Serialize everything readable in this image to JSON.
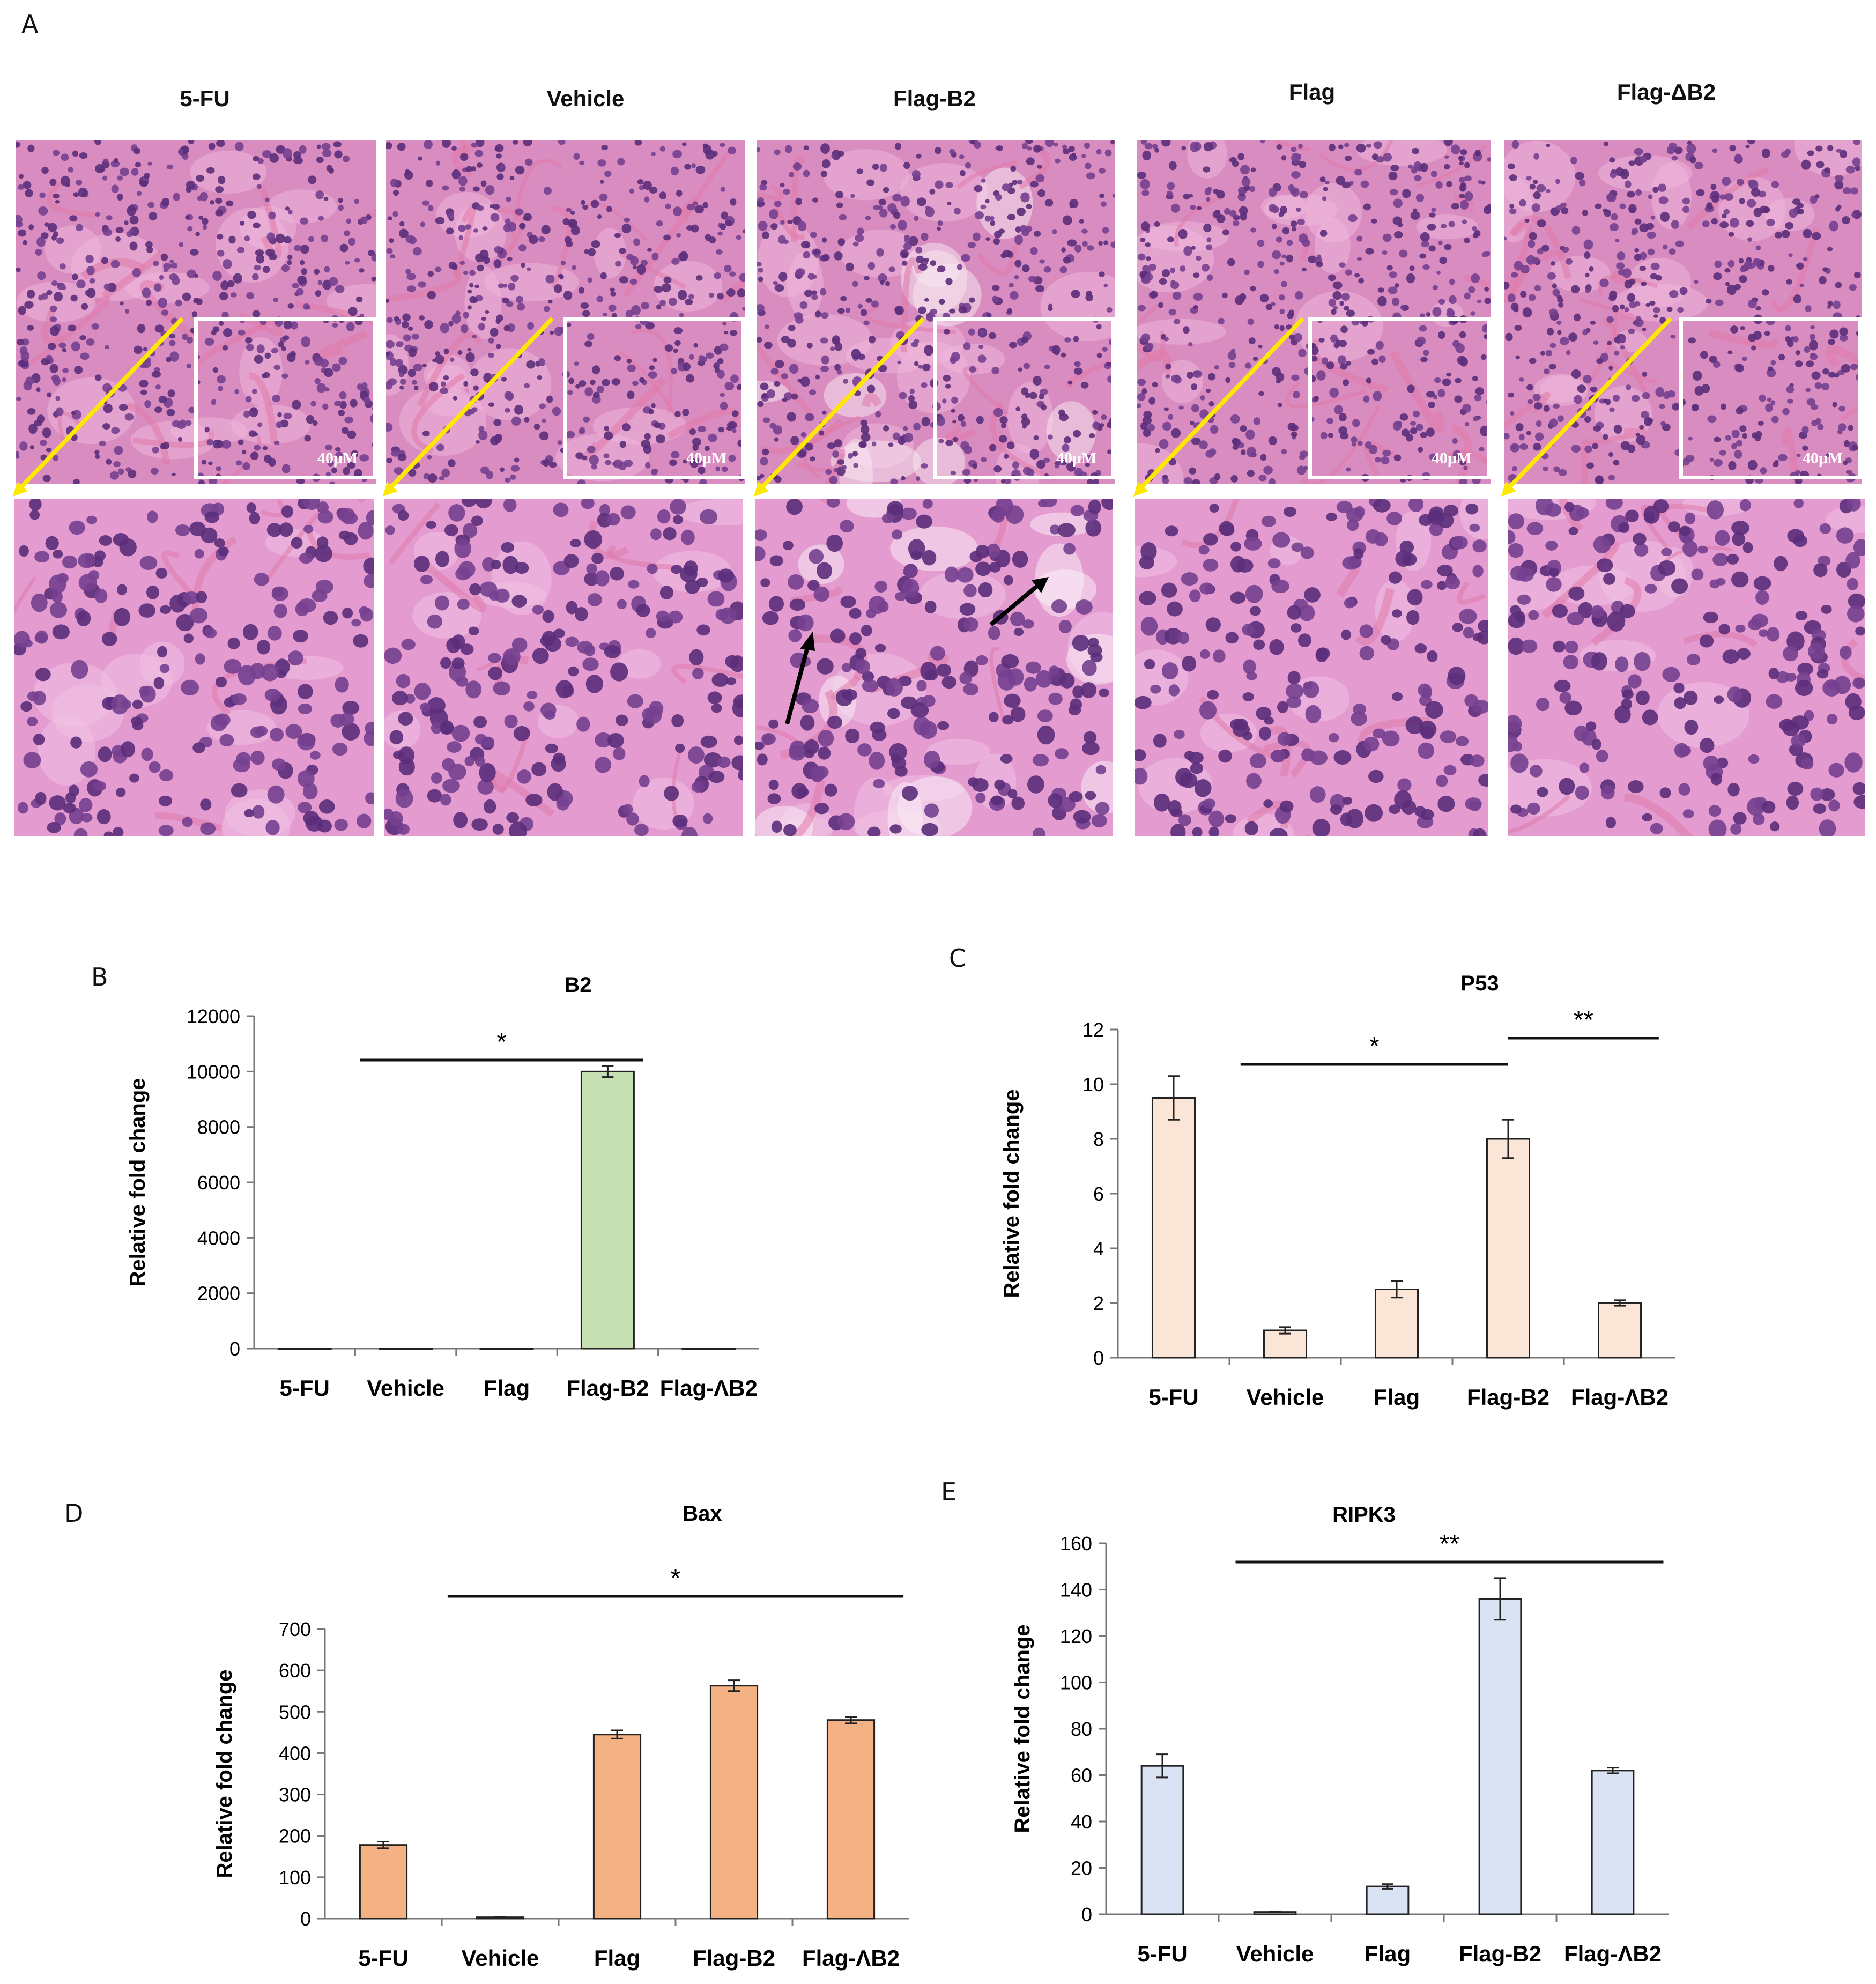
{
  "figure": {
    "panel_letters": {
      "a": "A",
      "b": "B",
      "c": "C",
      "d": "D",
      "e": "E"
    },
    "histology": {
      "columns": [
        {
          "label": "5-FU",
          "scale": "40μM"
        },
        {
          "label": "Vehicle",
          "scale": "40μM"
        },
        {
          "label": "Flag-B2",
          "scale": "40μM"
        },
        {
          "label": "Flag",
          "scale": "40μM"
        },
        {
          "label": "Flag-ΔB2",
          "scale": "40μM"
        }
      ]
    }
  },
  "chart_data": [
    {
      "id": "B",
      "type": "bar",
      "title": "B2",
      "ylabel": "Relative fold change",
      "categories": [
        "5-FU",
        "Vehicle",
        "Flag",
        "Flag-B2",
        "Flag-ΛB2"
      ],
      "values": [
        10,
        10,
        10,
        10000,
        10
      ],
      "errors": [
        0,
        0,
        0,
        200,
        0
      ],
      "ylim": [
        0,
        12000
      ],
      "ytick_step": 2000,
      "color": "#c6e0b4",
      "significance": [
        {
          "label": "*",
          "from": 1,
          "to": 4
        }
      ]
    },
    {
      "id": "C",
      "type": "bar",
      "title": "P53",
      "ylabel": "Relative fold change",
      "categories": [
        "5-FU",
        "Vehicle",
        "Flag",
        "Flag-B2",
        "Flag-ΛB2"
      ],
      "values": [
        9.5,
        1.0,
        2.5,
        8.0,
        2.0
      ],
      "errors": [
        0.8,
        0.12,
        0.3,
        0.7,
        0.1
      ],
      "ylim": [
        0,
        12
      ],
      "ytick_step": 2,
      "color": "#fbe5d6",
      "significance": [
        {
          "label": "*",
          "from": 1,
          "to": 3
        },
        {
          "label": "**",
          "from": 3,
          "to": 4
        }
      ]
    },
    {
      "id": "D",
      "type": "bar",
      "title": "Bax",
      "ylabel": "Relative fold change",
      "categories": [
        "5-FU",
        "Vehicle",
        "Flag",
        "Flag-B2",
        "Flag-ΛB2"
      ],
      "values": [
        178,
        3,
        445,
        563,
        480
      ],
      "errors": [
        8,
        1,
        10,
        13,
        8
      ],
      "ylim": [
        0,
        700
      ],
      "ytick_step": 100,
      "color": "#f4b183",
      "significance": [
        {
          "label": "*",
          "from": 1,
          "to": 4
        }
      ]
    },
    {
      "id": "E",
      "type": "bar",
      "title": "RIPK3",
      "ylabel": "Relative fold change",
      "categories": [
        "5-FU",
        "Vehicle",
        "Flag",
        "Flag-B2",
        "Flag-ΛB2"
      ],
      "values": [
        64,
        1,
        12,
        136,
        62
      ],
      "errors": [
        5,
        0.2,
        1,
        9,
        1.2
      ],
      "ylim": [
        0,
        160
      ],
      "ytick_step": 20,
      "color": "#dae3f3",
      "significance": [
        {
          "label": "**",
          "from": 1,
          "to": 4
        }
      ]
    }
  ]
}
